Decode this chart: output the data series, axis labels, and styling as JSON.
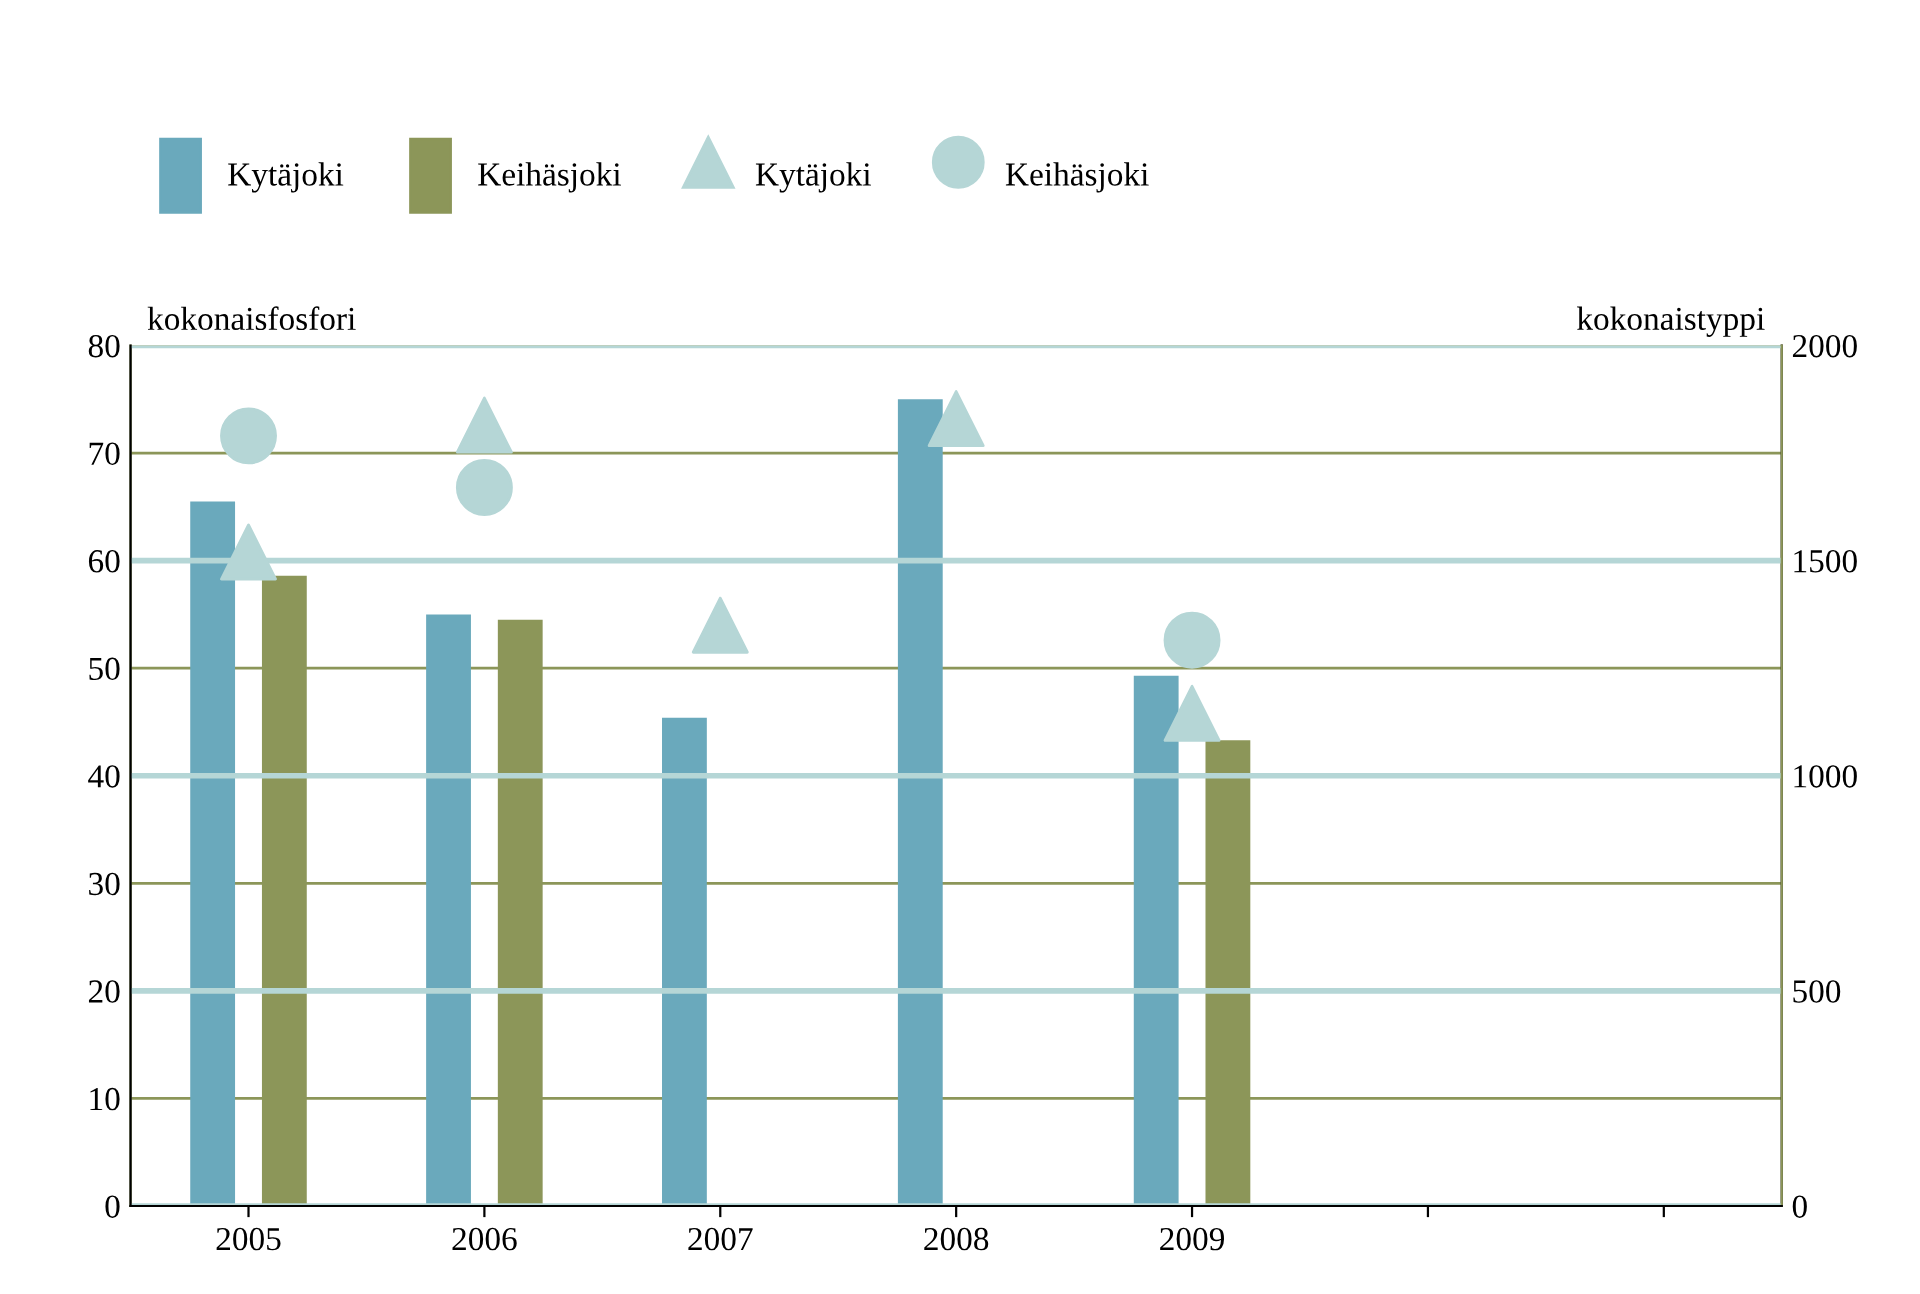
{
  "chart_data": {
    "type": "bar",
    "ylabel": "kokonaisfosfori",
    "y2label": "kokonaistyppi",
    "categories": [
      "2005",
      "2006",
      "2007",
      "2008",
      "2009",
      null,
      null
    ],
    "series": [
      {
        "name": "Kytäjoki",
        "color": "#6aa9bc",
        "values": [
          65.5,
          55,
          45.4,
          75,
          49.3,
          null,
          null
        ]
      },
      {
        "name": "Keihäsjoki",
        "color": "#8c9659",
        "values": [
          58.6,
          54.5,
          null,
          null,
          43.3,
          null,
          null
        ]
      },
      {
        "name": "Kytäjoki",
        "type": "scatter",
        "axis": "y2",
        "marker": "triangle",
        "color": "#b5d6d6",
        "values": [
          1520,
          1815,
          1350,
          1830,
          1145,
          null,
          null
        ]
      },
      {
        "name": "Keihäsjoki",
        "type": "scatter",
        "axis": "y2",
        "marker": "circle",
        "color": "#b5d6d6",
        "values": [
          1790,
          1670,
          null,
          null,
          1315,
          null,
          null
        ]
      }
    ],
    "ylim": [
      0,
      80
    ],
    "yticks": [
      0,
      10,
      20,
      30,
      40,
      50,
      60,
      70,
      80
    ],
    "y2lim": [
      0,
      2000
    ],
    "y2ticks": [
      0,
      500,
      1000,
      1500,
      2000
    ],
    "grid": "y",
    "legend": "top left"
  }
}
